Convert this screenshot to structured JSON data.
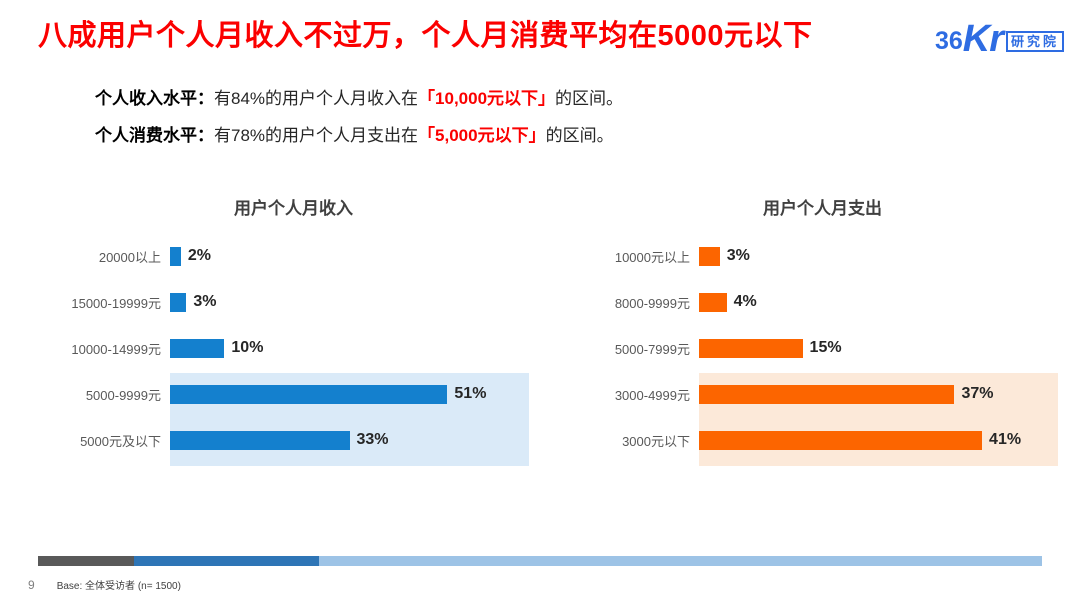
{
  "title": "八成用户个人月收入不过万，个人月消费平均在5000元以下",
  "logo": {
    "num": "36",
    "kr": "Kr",
    "badge": "研究院"
  },
  "intro": {
    "income": {
      "label": "个人收入水平：",
      "pre": "有84%的用户个人月收入在",
      "highlight": "「10,000元以下」",
      "post": "的区间。"
    },
    "spending": {
      "label": "个人消费水平：",
      "pre": "有78%的用户个人月支出在",
      "highlight": "「5,000元以下」",
      "post": "的区间。"
    }
  },
  "chart_data": [
    {
      "type": "bar",
      "orientation": "horizontal",
      "title": "用户个人月收入",
      "categories": [
        "20000以上",
        "15000-19999元",
        "10000-14999元",
        "5000-9999元",
        "5000元及以下"
      ],
      "values": [
        2,
        3,
        10,
        51,
        33
      ],
      "value_suffix": "%",
      "xlim": [
        0,
        66
      ],
      "grid": false,
      "legend": "none",
      "bar_color": "#1480ce",
      "highlight_bg": "#daeaf8",
      "highlighted_categories": [
        "5000-9999元",
        "5000元及以下"
      ]
    },
    {
      "type": "bar",
      "orientation": "horizontal",
      "title": "用户个人月支出",
      "categories": [
        "10000元以上",
        "8000-9999元",
        "5000-7999元",
        "3000-4999元",
        "3000元以下"
      ],
      "values": [
        3,
        4,
        15,
        37,
        41
      ],
      "value_suffix": "%",
      "xlim": [
        0,
        52
      ],
      "grid": false,
      "legend": "none",
      "bar_color": "#fc6500",
      "highlight_bg": "#fce9d9",
      "highlighted_categories": [
        "3000-4999元",
        "3000元以下"
      ]
    }
  ],
  "footer": {
    "page_number": "9",
    "base_note": "Base: 全体受访者 (n= 1500)",
    "progress_colors": [
      "#595959",
      "#2e75b6",
      "#9dc3e6"
    ]
  }
}
